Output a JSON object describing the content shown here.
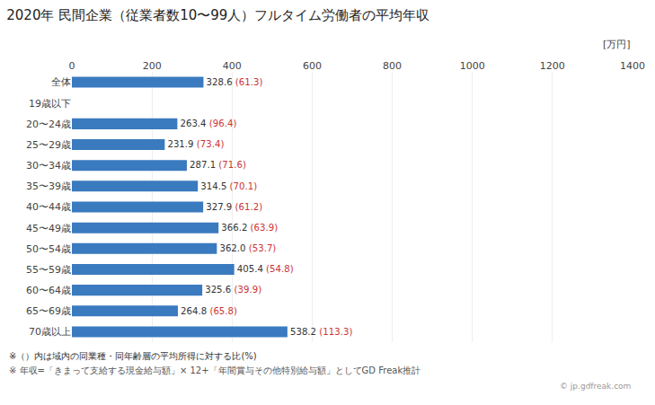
{
  "chart_data": {
    "type": "bar",
    "orientation": "horizontal",
    "title": "2020年 民間企業（従業者数10〜99人）フルタイム労働者の平均年収",
    "xlabel": "[万円]",
    "categories": [
      "全体",
      "19歳以下",
      "20〜24歳",
      "25〜29歳",
      "30〜34歳",
      "35〜39歳",
      "40〜44歳",
      "45〜49歳",
      "50〜54歳",
      "55〜59歳",
      "60〜64歳",
      "65〜69歳",
      "70歳以上"
    ],
    "values": [
      328.6,
      0,
      263.4,
      231.9,
      287.1,
      314.5,
      327.9,
      366.2,
      362.0,
      405.4,
      325.6,
      264.8,
      538.2
    ],
    "value_labels": [
      "328.6",
      null,
      "263.4",
      "231.9",
      "287.1",
      "314.5",
      "327.9",
      "366.2",
      "362.0",
      "405.4",
      "325.6",
      "264.8",
      "538.2"
    ],
    "ratios": {
      "values": [
        61.3,
        null,
        96.4,
        73.4,
        71.6,
        70.1,
        61.2,
        63.9,
        53.7,
        54.8,
        39.9,
        65.8,
        113.3
      ],
      "value_labels": [
        "(61.3)",
        null,
        "(96.4)",
        "(73.4)",
        "(71.6)",
        "(70.1)",
        "(61.2)",
        "(63.9)",
        "(53.7)",
        "(54.8)",
        "(39.9)",
        "(65.8)",
        "(113.3)"
      ],
      "color": "#cc3333"
    },
    "color": "#3a7abf",
    "data_labels": true,
    "xlim": [
      0,
      1400
    ],
    "xticks": [
      0,
      200,
      400,
      600,
      800,
      1000,
      1200,
      1400
    ],
    "grid": true,
    "annotations": [
      "※（）内は域内の同業種・同年齢層の平均所得に対する比(%)",
      "※ 年収=「きまって支給する現金給与額」× 12+「年間賞与その他特別給与額」としてGD Freak推計",
      "© jp.gdfreak.com"
    ]
  }
}
